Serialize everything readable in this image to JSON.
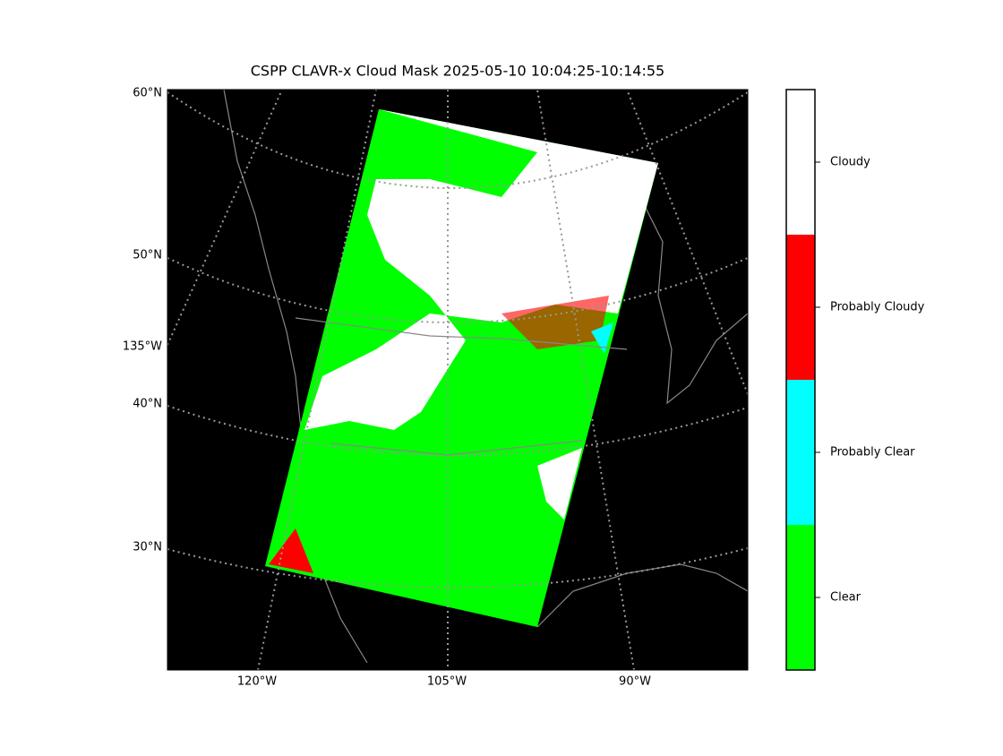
{
  "map": {
    "title": "CSPP CLAVR-x Cloud Mask 2025-05-10 10:04:25-10:14:55",
    "lat_labels": [
      "60°N",
      "50°N",
      "135°W",
      "40°N",
      "30°N"
    ],
    "lon_labels": [
      "120°W",
      "105°W",
      "90°W"
    ],
    "colorbar": {
      "labels": [
        "Cloudy",
        "Probably Cloudy",
        "Probably Clear",
        "Clear"
      ],
      "colors": [
        "#ffffff",
        "#ff0000",
        "#00ffff",
        "#00ff00"
      ]
    }
  }
}
